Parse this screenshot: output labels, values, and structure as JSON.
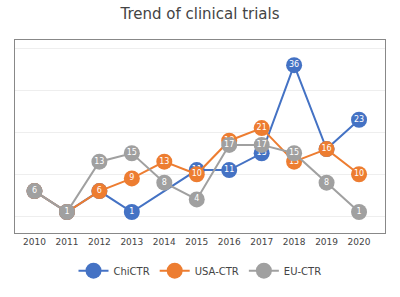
{
  "chart_data": {
    "type": "line",
    "title": "Trend of clinical trials",
    "x": [
      2010,
      2011,
      2012,
      2013,
      2014,
      2015,
      2016,
      2017,
      2018,
      2019,
      2020
    ],
    "series": [
      {
        "name": "ChiCTR",
        "color": "#4472C4",
        "values": [
          6,
          1,
          6,
          1,
          null,
          11,
          11,
          15,
          36,
          16,
          23
        ]
      },
      {
        "name": "USA-CTR",
        "color": "#ED7D31",
        "values": [
          6,
          1,
          6,
          9,
          13,
          10,
          18,
          21,
          13,
          16,
          10
        ]
      },
      {
        "name": "EU-CTR",
        "color": "#A0A0A0",
        "values": [
          6,
          1,
          13,
          15,
          8,
          4,
          17,
          17,
          15,
          8,
          1
        ]
      }
    ],
    "xlim": [
      2009.4,
      2020.8
    ],
    "xticks": [
      2010,
      2011,
      2012,
      2013,
      2014,
      2015,
      2016,
      2017,
      2018,
      2019,
      2020
    ],
    "ylim": [
      -4,
      42
    ],
    "yticks": [
      0,
      10,
      20,
      30,
      40
    ],
    "grid": true,
    "legend": "bottom",
    "data_labels": true,
    "tick_labels": "x",
    "marker": "circle"
  }
}
